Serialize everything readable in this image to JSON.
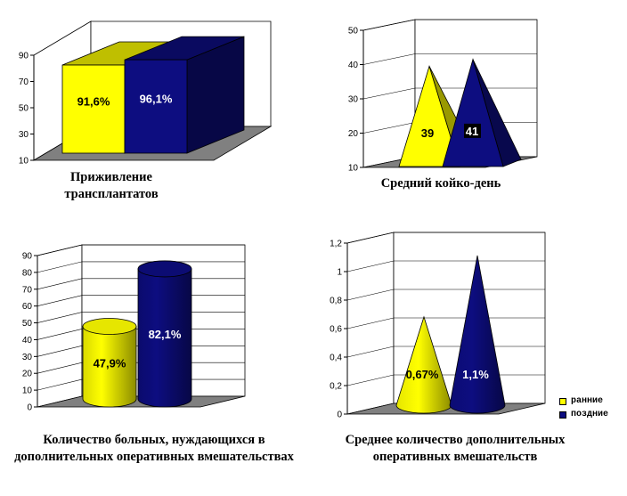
{
  "colors": {
    "early": "#ffff00",
    "late": "#0d0d80"
  },
  "legend": [
    {
      "label": "ранние",
      "color": "#ffff00"
    },
    {
      "label": "поздние",
      "color": "#0d0d80"
    }
  ],
  "chart_data": [
    {
      "type": "bar",
      "shape": "box",
      "title": "Приживление трансплантатов",
      "categories": [
        "ранние",
        "поздние"
      ],
      "values": [
        91.6,
        96.1
      ],
      "labels": [
        "91,6%",
        "96,1%"
      ],
      "yticks": [
        "10",
        "30",
        "50",
        "70",
        "90"
      ],
      "ylim": [
        10,
        100
      ],
      "grid": false
    },
    {
      "type": "bar",
      "shape": "pyramid",
      "title": "Средний койко-день",
      "categories": [
        "ранние",
        "поздние"
      ],
      "values": [
        39,
        41
      ],
      "labels": [
        "39",
        "41"
      ],
      "yticks": [
        "10",
        "20",
        "30",
        "40",
        "50"
      ],
      "ylim": [
        10,
        50
      ],
      "grid": true
    },
    {
      "type": "bar",
      "shape": "cylinder",
      "title": "Количество больных, нуждающихся в дополнительных оперативных вмешательствах",
      "categories": [
        "ранние",
        "поздние"
      ],
      "values": [
        47.9,
        82.1
      ],
      "labels": [
        "47,9%",
        "82,1%"
      ],
      "yticks": [
        "0",
        "10",
        "20",
        "30",
        "40",
        "50",
        "60",
        "70",
        "80",
        "90"
      ],
      "ylim": [
        0,
        90
      ],
      "grid": true
    },
    {
      "type": "bar",
      "shape": "cone",
      "title": "Среднее количество дополнительных оперативных вмешательств",
      "categories": [
        "ранние",
        "поздние"
      ],
      "values": [
        0.67,
        1.1
      ],
      "labels": [
        "0,67%",
        "1,1%"
      ],
      "yticks": [
        "0",
        "0,2",
        "0,4",
        "0,6",
        "0,8",
        "1",
        "1,2"
      ],
      "ylim": [
        0,
        1.2
      ],
      "grid": true
    }
  ]
}
